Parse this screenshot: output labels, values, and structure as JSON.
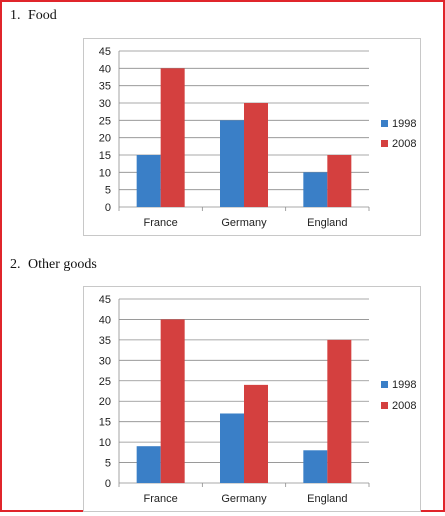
{
  "sections": [
    {
      "number": "1.",
      "title": "Food"
    },
    {
      "number": "2.",
      "title": "Other goods"
    }
  ],
  "colors": {
    "1998": "#3a7fc7",
    "2008": "#d4403f",
    "grid": "#8c8c8c"
  },
  "chart_data": [
    {
      "type": "bar",
      "title": "",
      "categories": [
        "France",
        "Germany",
        "England"
      ],
      "series": [
        {
          "name": "1998",
          "values": [
            15,
            25,
            10
          ]
        },
        {
          "name": "2008",
          "values": [
            40,
            30,
            15
          ]
        }
      ],
      "ylim": [
        0,
        45
      ],
      "yticks": [
        0,
        5,
        10,
        15,
        20,
        25,
        30,
        35,
        40,
        45
      ],
      "grid": true,
      "legend": "right"
    },
    {
      "type": "bar",
      "title": "",
      "categories": [
        "France",
        "Germany",
        "England"
      ],
      "series": [
        {
          "name": "1998",
          "values": [
            9,
            17,
            8
          ]
        },
        {
          "name": "2008",
          "values": [
            40,
            24,
            35
          ]
        }
      ],
      "ylim": [
        0,
        45
      ],
      "yticks": [
        0,
        5,
        10,
        15,
        20,
        25,
        30,
        35,
        40,
        45
      ],
      "grid": true,
      "legend": "right"
    }
  ]
}
